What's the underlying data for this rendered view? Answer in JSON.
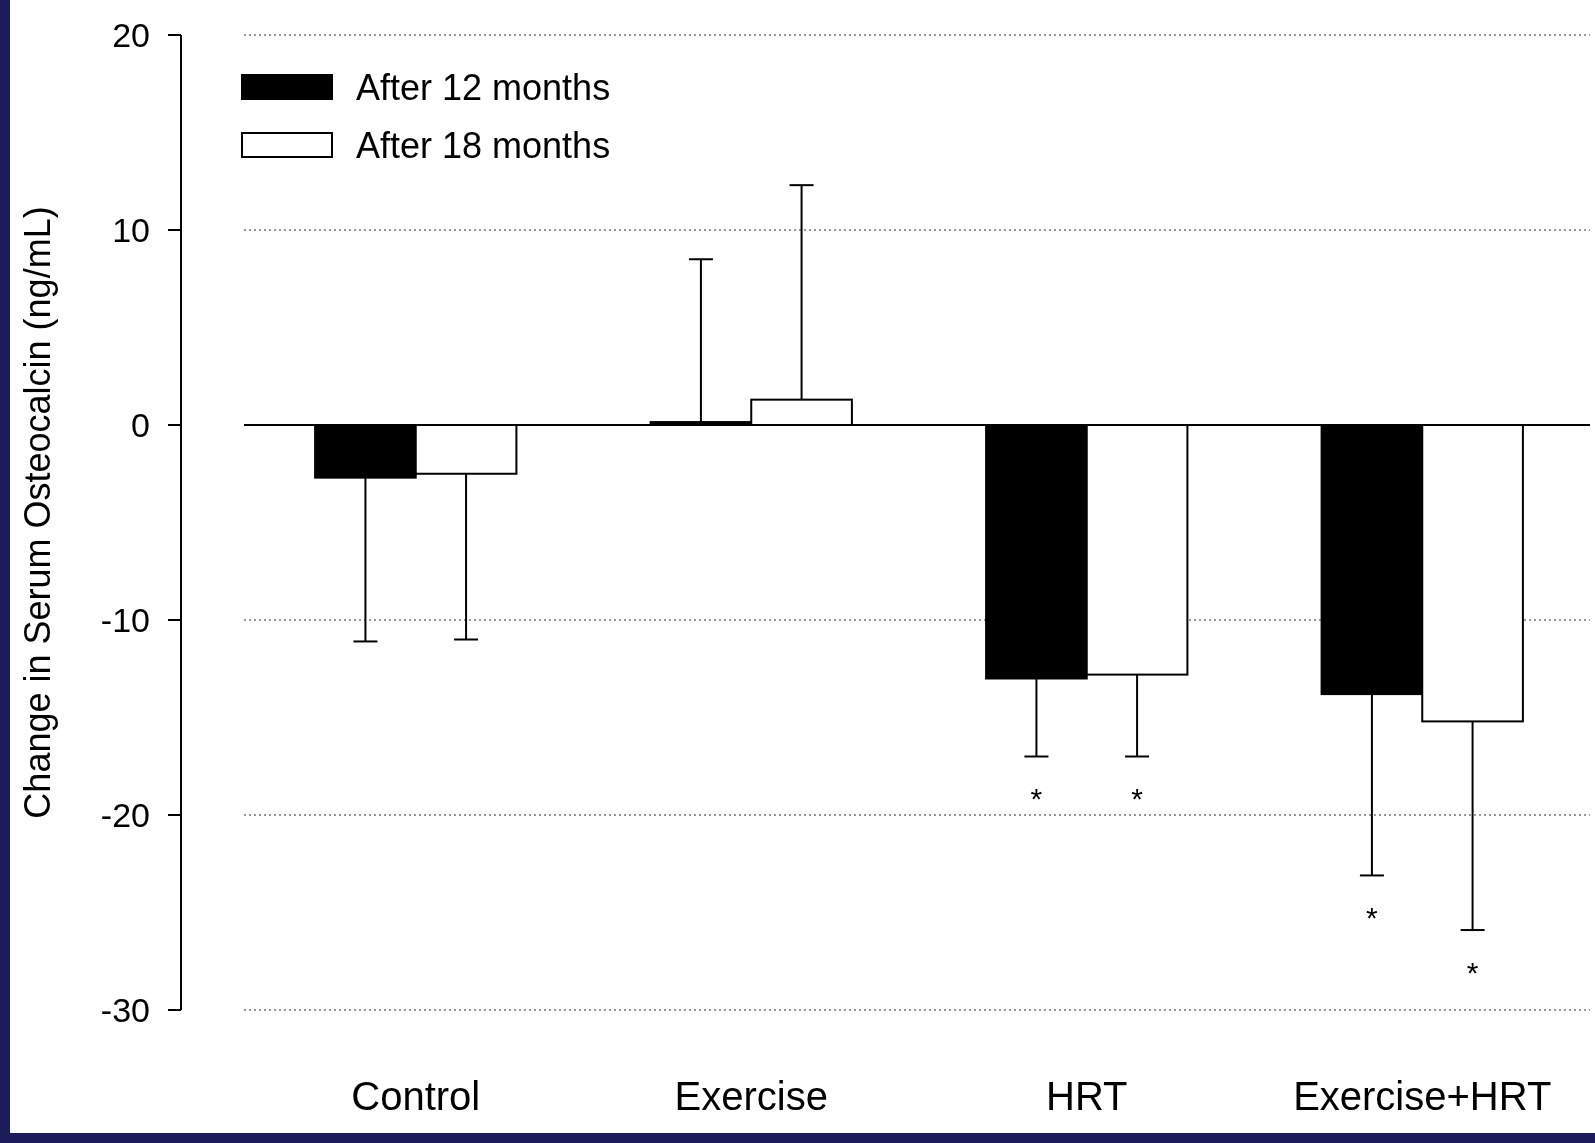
{
  "chart_data": {
    "type": "bar",
    "ylabel": "Change in Serum Osteocalcin (ng/mL)",
    "categories": [
      "Control",
      "Exercise",
      "HRT",
      "Exercise+HRT"
    ],
    "series": [
      {
        "name": "After 12 months",
        "color": "#000000",
        "values": [
          -2.7,
          0.15,
          -13.0,
          -13.8
        ],
        "errors": [
          [
            -11.1,
            -2.7
          ],
          [
            0.15,
            8.5
          ],
          [
            -17.0,
            -13.0
          ],
          [
            -23.1,
            -13.8
          ]
        ]
      },
      {
        "name": "After 18 months",
        "color": "#ffffff",
        "values": [
          -2.5,
          1.3,
          -12.8,
          -15.2
        ],
        "errors": [
          [
            -11.0,
            -2.5
          ],
          [
            1.3,
            12.3
          ],
          [
            -17.0,
            -12.8
          ],
          [
            -25.9,
            -15.2
          ]
        ]
      }
    ],
    "ylim": [
      -30,
      20
    ],
    "yticks": [
      -30,
      -20,
      -10,
      0,
      10,
      20
    ],
    "grid": "y",
    "legend": "top left",
    "annotations": [
      "*",
      "*",
      "*",
      "*"
    ]
  }
}
